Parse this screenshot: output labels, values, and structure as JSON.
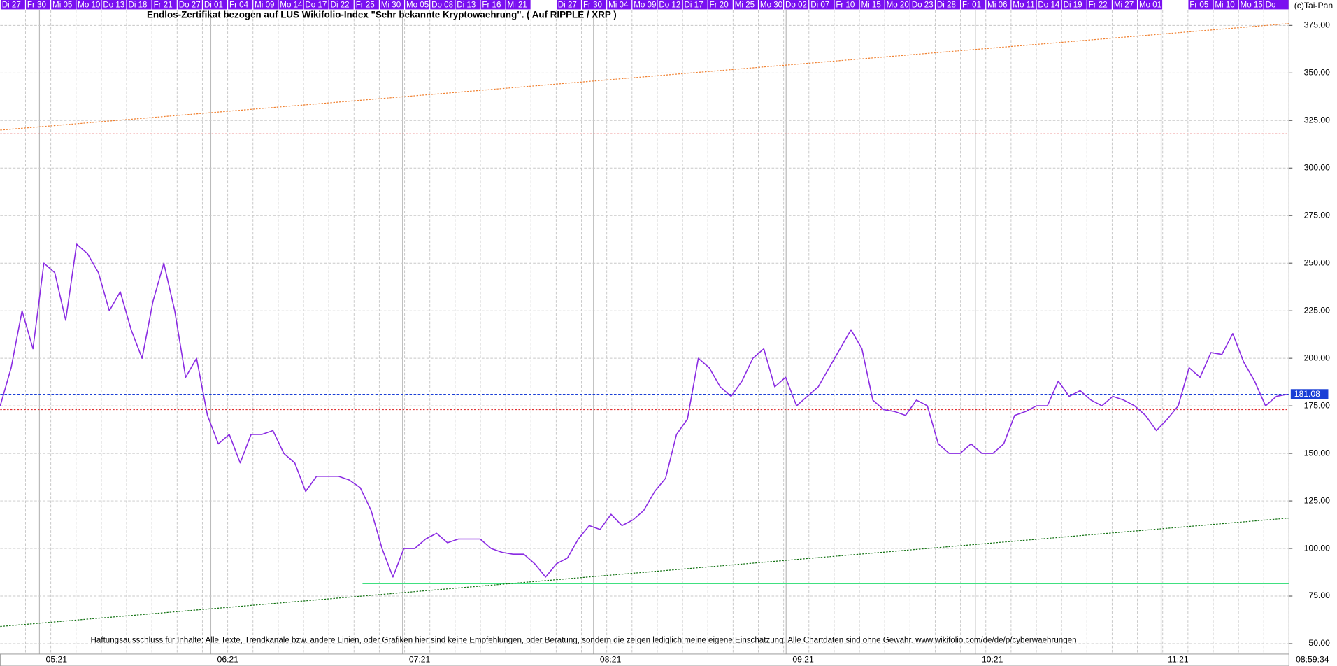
{
  "chart_data": {
    "type": "line",
    "title": "Endlos-Zertifikat bezogen auf LUS Wikifolio-Index \"Sehr bekannte Kryptowaehrung\". ( Auf RIPPLE / XRP )",
    "copyright": "(c)Tai-Pan",
    "disclaimer": "Haftungsausschluss für Inhalte: Alle Texte, Trendkanäle bzw. andere Linien, oder Grafiken hier sind keine Empfehlungen, oder Beratung, sondern die zeigen lediglich meine eigene Einschätzung. Alle Chartdaten sind ohne Gewähr.  www.wikifolio.com/de/de/p/cyberwaehrungen",
    "date_bar": [
      "Di 27",
      "Fr 30",
      "Mi 05",
      "Mo 10",
      "Do 13",
      "Di 18",
      "Fr 21",
      "Do 27",
      "Di 01",
      "Fr 04",
      "Mi 09",
      "Mo 14",
      "Do 17",
      "Di 22",
      "Fr 25",
      "Mi 30",
      "Mo 05",
      "Do 08",
      "Di 13",
      "Fr 16",
      "Mi 21",
      null,
      "Di 27",
      "Fr 30",
      "Mi 04",
      "Mo 09",
      "Do 12",
      "Di 17",
      "Fr 20",
      "Mi 25",
      "Mo 30",
      "Do 02",
      "Di 07",
      "Fr 10",
      "Mi 15",
      "Mo 20",
      "Do 23",
      "Di 28",
      "Fr 01",
      "Mi 06",
      "Mo 11",
      "Do 14",
      "Di 19",
      "Fr 22",
      "Mi 27",
      "Mo 01",
      null,
      "Fr 05",
      "Mi 10",
      "Mo 15",
      "Do"
    ],
    "month_labels": [
      "05:21",
      "06:21",
      "07:21",
      "08:21",
      "09:21",
      "10:21",
      "11:21"
    ],
    "timestamp": "08:59:34",
    "axis_mark": "-",
    "ylim": [
      44.5,
      383
    ],
    "yticks": [
      {
        "value": 50,
        "label": "50.00"
      },
      {
        "value": 75,
        "label": "75.00"
      },
      {
        "value": 100,
        "label": "100.00"
      },
      {
        "value": 125,
        "label": "125.00"
      },
      {
        "value": 150,
        "label": "150.00"
      },
      {
        "value": 175,
        "label": "175.00"
      },
      {
        "value": 200,
        "label": "200.00"
      },
      {
        "value": 225,
        "label": "225.00"
      },
      {
        "value": 250,
        "label": "250.00"
      },
      {
        "value": 275,
        "label": "275.00"
      },
      {
        "value": 300,
        "label": "300.00"
      },
      {
        "value": 325,
        "label": "325.00"
      },
      {
        "value": 350,
        "label": "350.00"
      },
      {
        "value": 375,
        "label": "375.00"
      }
    ],
    "grid": true,
    "series": [
      {
        "name": "RIPPLE / XRP",
        "color": "#8a2be2",
        "values": [
          175,
          195,
          225,
          205,
          250,
          245,
          220,
          260,
          255,
          245,
          225,
          235,
          215,
          200,
          230,
          250,
          225,
          190,
          200,
          170,
          155,
          160,
          145,
          160,
          160,
          162,
          150,
          145,
          130,
          138,
          138,
          138,
          136,
          132,
          120,
          100,
          85,
          100,
          100,
          105,
          108,
          103,
          105,
          105,
          105,
          100,
          98,
          97,
          97,
          92,
          85,
          92,
          95,
          105,
          112,
          110,
          118,
          112,
          115,
          120,
          130,
          137,
          160,
          168,
          200,
          195,
          185,
          180,
          188,
          200,
          205,
          185,
          190,
          175,
          180,
          185,
          195,
          205,
          215,
          205,
          178,
          173,
          172,
          170,
          178,
          175,
          155,
          150,
          150,
          155,
          150,
          150,
          155,
          170,
          172,
          175,
          175,
          188,
          180,
          183,
          178,
          175,
          180,
          178,
          175,
          170,
          162,
          168,
          175,
          195,
          190,
          203,
          202,
          213,
          198,
          188,
          175,
          180,
          181.08
        ]
      }
    ],
    "current": {
      "value": 181.08,
      "label": "181.08",
      "color": "#1a3fd6"
    },
    "levels": [
      {
        "value": 318,
        "color": "#e03030"
      },
      {
        "value": 173,
        "color": "#e03030"
      },
      {
        "value": 81.5,
        "color": "#40e080"
      }
    ],
    "trend_lines": [
      {
        "values": [
          320,
          376
        ],
        "color": "#f08030"
      },
      {
        "values": [
          59,
          116
        ],
        "color": "#107010"
      }
    ]
  }
}
